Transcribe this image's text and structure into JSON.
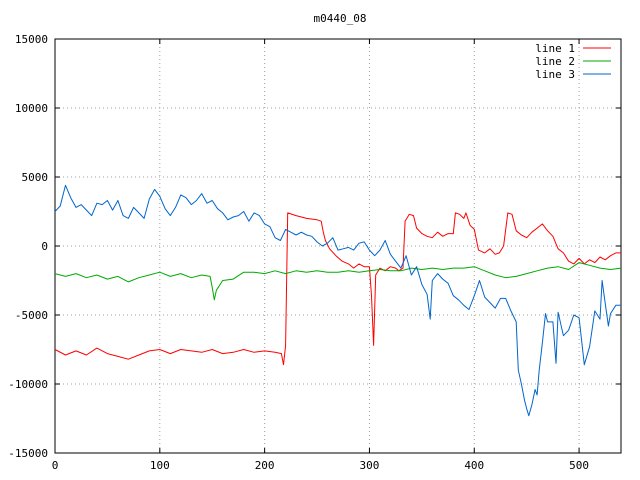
{
  "chart_data": {
    "type": "line",
    "title": "m0440_08",
    "xlabel": "",
    "ylabel": "",
    "xlim": [
      0,
      540
    ],
    "ylim": [
      -15000,
      15000
    ],
    "x_ticks": [
      0,
      100,
      200,
      300,
      400,
      500
    ],
    "x_tick_labels": [
      "0",
      "100",
      "200",
      "300",
      "400",
      "500"
    ],
    "y_ticks": [
      -15000,
      -10000,
      -5000,
      0,
      5000,
      10000,
      15000
    ],
    "y_tick_labels": [
      "-15000",
      "-10000",
      "-5000",
      "0",
      "5000",
      "10000",
      "15000"
    ],
    "grid": true,
    "legend_position": "top-right",
    "series": [
      {
        "name": "line 1",
        "color": "#ff0000",
        "points": [
          [
            0,
            -7500
          ],
          [
            10,
            -7900
          ],
          [
            20,
            -7600
          ],
          [
            30,
            -7900
          ],
          [
            40,
            -7400
          ],
          [
            50,
            -7800
          ],
          [
            60,
            -8000
          ],
          [
            70,
            -8200
          ],
          [
            80,
            -7900
          ],
          [
            90,
            -7600
          ],
          [
            100,
            -7500
          ],
          [
            110,
            -7800
          ],
          [
            120,
            -7500
          ],
          [
            130,
            -7600
          ],
          [
            140,
            -7700
          ],
          [
            150,
            -7500
          ],
          [
            160,
            -7800
          ],
          [
            170,
            -7700
          ],
          [
            180,
            -7500
          ],
          [
            190,
            -7700
          ],
          [
            200,
            -7600
          ],
          [
            210,
            -7700
          ],
          [
            216,
            -7800
          ],
          [
            218,
            -8600
          ],
          [
            220,
            -7200
          ],
          [
            222,
            2400
          ],
          [
            230,
            2200
          ],
          [
            240,
            2000
          ],
          [
            250,
            1900
          ],
          [
            254,
            1800
          ],
          [
            256,
            1000
          ],
          [
            258,
            400
          ],
          [
            262,
            -200
          ],
          [
            268,
            -700
          ],
          [
            274,
            -1100
          ],
          [
            280,
            -1300
          ],
          [
            285,
            -1600
          ],
          [
            290,
            -1300
          ],
          [
            295,
            -1500
          ],
          [
            300,
            -1500
          ],
          [
            302,
            -3600
          ],
          [
            304,
            -7200
          ],
          [
            306,
            -2100
          ],
          [
            310,
            -1600
          ],
          [
            315,
            -1800
          ],
          [
            320,
            -1500
          ],
          [
            325,
            -1600
          ],
          [
            328,
            -1800
          ],
          [
            332,
            -1600
          ],
          [
            334,
            1800
          ],
          [
            338,
            2300
          ],
          [
            342,
            2200
          ],
          [
            345,
            1300
          ],
          [
            350,
            900
          ],
          [
            355,
            700
          ],
          [
            360,
            600
          ],
          [
            365,
            1000
          ],
          [
            370,
            700
          ],
          [
            375,
            900
          ],
          [
            380,
            900
          ],
          [
            382,
            2400
          ],
          [
            386,
            2300
          ],
          [
            390,
            2000
          ],
          [
            392,
            2400
          ],
          [
            396,
            1500
          ],
          [
            400,
            1200
          ],
          [
            404,
            -300
          ],
          [
            410,
            -500
          ],
          [
            415,
            -200
          ],
          [
            420,
            -600
          ],
          [
            424,
            -500
          ],
          [
            428,
            0
          ],
          [
            430,
            1200
          ],
          [
            432,
            2400
          ],
          [
            436,
            2300
          ],
          [
            440,
            1100
          ],
          [
            445,
            800
          ],
          [
            450,
            600
          ],
          [
            455,
            1000
          ],
          [
            460,
            1300
          ],
          [
            465,
            1600
          ],
          [
            470,
            1100
          ],
          [
            475,
            700
          ],
          [
            480,
            -200
          ],
          [
            485,
            -500
          ],
          [
            490,
            -1100
          ],
          [
            495,
            -1300
          ],
          [
            500,
            -900
          ],
          [
            505,
            -1300
          ],
          [
            510,
            -1000
          ],
          [
            515,
            -1200
          ],
          [
            520,
            -800
          ],
          [
            525,
            -1000
          ],
          [
            530,
            -700
          ],
          [
            535,
            -500
          ],
          [
            540,
            -500
          ]
        ]
      },
      {
        "name": "line 2",
        "color": "#00aa00",
        "points": [
          [
            0,
            -2000
          ],
          [
            10,
            -2200
          ],
          [
            20,
            -2000
          ],
          [
            30,
            -2300
          ],
          [
            40,
            -2100
          ],
          [
            50,
            -2400
          ],
          [
            60,
            -2200
          ],
          [
            70,
            -2600
          ],
          [
            80,
            -2300
          ],
          [
            90,
            -2100
          ],
          [
            100,
            -1900
          ],
          [
            110,
            -2200
          ],
          [
            120,
            -2000
          ],
          [
            130,
            -2300
          ],
          [
            140,
            -2100
          ],
          [
            148,
            -2200
          ],
          [
            150,
            -3000
          ],
          [
            152,
            -3900
          ],
          [
            154,
            -3200
          ],
          [
            160,
            -2500
          ],
          [
            170,
            -2400
          ],
          [
            180,
            -1900
          ],
          [
            190,
            -1900
          ],
          [
            200,
            -2000
          ],
          [
            210,
            -1800
          ],
          [
            220,
            -2000
          ],
          [
            230,
            -1800
          ],
          [
            240,
            -1900
          ],
          [
            250,
            -1800
          ],
          [
            260,
            -1900
          ],
          [
            270,
            -1900
          ],
          [
            280,
            -1800
          ],
          [
            290,
            -1900
          ],
          [
            300,
            -1800
          ],
          [
            310,
            -1700
          ],
          [
            320,
            -1800
          ],
          [
            330,
            -1800
          ],
          [
            340,
            -1600
          ],
          [
            350,
            -1700
          ],
          [
            360,
            -1600
          ],
          [
            370,
            -1700
          ],
          [
            380,
            -1600
          ],
          [
            390,
            -1600
          ],
          [
            400,
            -1500
          ],
          [
            410,
            -1800
          ],
          [
            420,
            -2100
          ],
          [
            430,
            -2300
          ],
          [
            440,
            -2200
          ],
          [
            450,
            -2000
          ],
          [
            460,
            -1800
          ],
          [
            470,
            -1600
          ],
          [
            480,
            -1500
          ],
          [
            490,
            -1700
          ],
          [
            500,
            -1200
          ],
          [
            510,
            -1400
          ],
          [
            520,
            -1600
          ],
          [
            530,
            -1700
          ],
          [
            540,
            -1600
          ]
        ]
      },
      {
        "name": "line 3",
        "color": "#0066cc",
        "points": [
          [
            0,
            2500
          ],
          [
            5,
            2900
          ],
          [
            10,
            4400
          ],
          [
            15,
            3500
          ],
          [
            20,
            2800
          ],
          [
            25,
            3000
          ],
          [
            30,
            2600
          ],
          [
            35,
            2200
          ],
          [
            40,
            3100
          ],
          [
            45,
            3000
          ],
          [
            50,
            3300
          ],
          [
            55,
            2600
          ],
          [
            60,
            3300
          ],
          [
            65,
            2200
          ],
          [
            70,
            2000
          ],
          [
            75,
            2800
          ],
          [
            80,
            2400
          ],
          [
            85,
            2000
          ],
          [
            90,
            3400
          ],
          [
            95,
            4100
          ],
          [
            100,
            3600
          ],
          [
            105,
            2700
          ],
          [
            110,
            2200
          ],
          [
            115,
            2800
          ],
          [
            120,
            3700
          ],
          [
            125,
            3500
          ],
          [
            130,
            3000
          ],
          [
            135,
            3300
          ],
          [
            140,
            3800
          ],
          [
            145,
            3100
          ],
          [
            150,
            3300
          ],
          [
            155,
            2700
          ],
          [
            160,
            2400
          ],
          [
            165,
            1900
          ],
          [
            170,
            2100
          ],
          [
            175,
            2200
          ],
          [
            180,
            2500
          ],
          [
            185,
            1800
          ],
          [
            190,
            2400
          ],
          [
            195,
            2200
          ],
          [
            200,
            1600
          ],
          [
            205,
            1400
          ],
          [
            210,
            600
          ],
          [
            215,
            400
          ],
          [
            220,
            1200
          ],
          [
            225,
            1000
          ],
          [
            230,
            800
          ],
          [
            235,
            1000
          ],
          [
            240,
            800
          ],
          [
            245,
            700
          ],
          [
            250,
            300
          ],
          [
            255,
            0
          ],
          [
            260,
            200
          ],
          [
            265,
            600
          ],
          [
            270,
            -300
          ],
          [
            275,
            -200
          ],
          [
            280,
            -100
          ],
          [
            285,
            -300
          ],
          [
            290,
            200
          ],
          [
            295,
            300
          ],
          [
            300,
            -300
          ],
          [
            305,
            -700
          ],
          [
            310,
            -300
          ],
          [
            315,
            400
          ],
          [
            320,
            -600
          ],
          [
            325,
            -1100
          ],
          [
            330,
            -1600
          ],
          [
            335,
            -700
          ],
          [
            340,
            -2100
          ],
          [
            345,
            -1500
          ],
          [
            350,
            -2800
          ],
          [
            355,
            -3500
          ],
          [
            358,
            -5300
          ],
          [
            360,
            -2500
          ],
          [
            365,
            -2000
          ],
          [
            370,
            -2400
          ],
          [
            375,
            -2700
          ],
          [
            380,
            -3600
          ],
          [
            385,
            -3900
          ],
          [
            390,
            -4300
          ],
          [
            395,
            -4600
          ],
          [
            400,
            -3600
          ],
          [
            405,
            -2500
          ],
          [
            410,
            -3700
          ],
          [
            415,
            -4100
          ],
          [
            420,
            -4500
          ],
          [
            425,
            -3800
          ],
          [
            430,
            -3800
          ],
          [
            435,
            -4700
          ],
          [
            440,
            -5500
          ],
          [
            442,
            -9000
          ],
          [
            445,
            -10000
          ],
          [
            448,
            -11200
          ],
          [
            450,
            -11800
          ],
          [
            452,
            -12300
          ],
          [
            455,
            -11500
          ],
          [
            458,
            -10400
          ],
          [
            460,
            -10800
          ],
          [
            462,
            -9000
          ],
          [
            465,
            -7000
          ],
          [
            468,
            -4900
          ],
          [
            470,
            -5500
          ],
          [
            475,
            -5500
          ],
          [
            478,
            -8500
          ],
          [
            480,
            -4800
          ],
          [
            485,
            -6500
          ],
          [
            490,
            -6100
          ],
          [
            495,
            -5000
          ],
          [
            500,
            -5200
          ],
          [
            505,
            -8600
          ],
          [
            510,
            -7300
          ],
          [
            515,
            -4700
          ],
          [
            520,
            -5300
          ],
          [
            522,
            -2500
          ],
          [
            525,
            -4200
          ],
          [
            528,
            -5800
          ],
          [
            530,
            -4900
          ],
          [
            535,
            -4300
          ],
          [
            540,
            -4300
          ]
        ]
      }
    ]
  }
}
